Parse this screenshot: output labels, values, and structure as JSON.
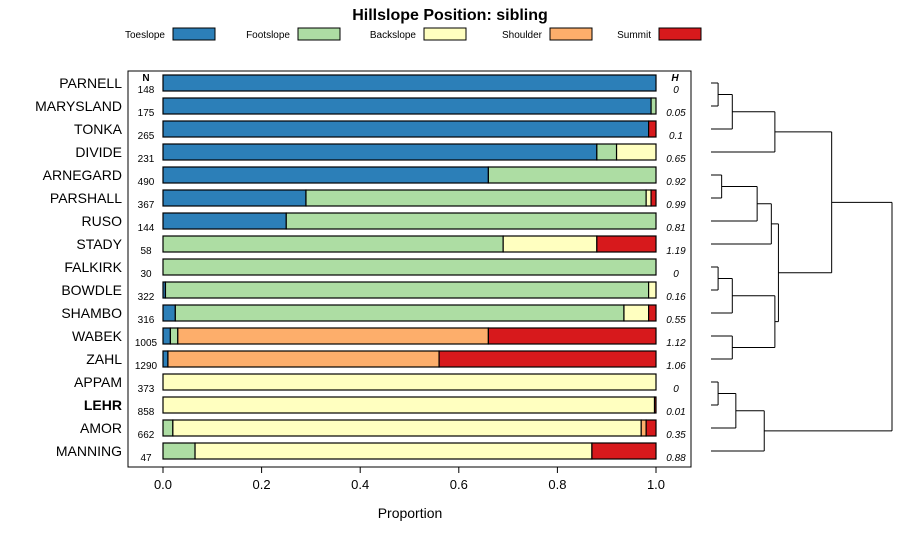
{
  "chart_data": {
    "type": "bar",
    "orientation": "horizontal",
    "stacked": true,
    "title": "Hillslope Position: sibling",
    "xlabel": "Proportion",
    "ylabel": "",
    "xlim": [
      0,
      1
    ],
    "xticks": [
      "0.0",
      "0.2",
      "0.4",
      "0.6",
      "0.8",
      "1.0"
    ],
    "legend_position": "top",
    "n_header": "N",
    "h_header": "H",
    "highlight_category": "LEHR",
    "series": [
      {
        "name": "Toeslope",
        "color": "#2c7fb8"
      },
      {
        "name": "Footslope",
        "color": "#addda3"
      },
      {
        "name": "Backslope",
        "color": "#ffffc0"
      },
      {
        "name": "Shoulder",
        "color": "#fdae6b"
      },
      {
        "name": "Summit",
        "color": "#d7191c"
      }
    ],
    "categories": [
      "PARNELL",
      "MARYSLAND",
      "TONKA",
      "DIVIDE",
      "ARNEGARD",
      "PARSHALL",
      "RUSO",
      "STADY",
      "FALKIRK",
      "BOWDLE",
      "SHAMBO",
      "WABEK",
      "ZAHL",
      "APPAM",
      "LEHR",
      "AMOR",
      "MANNING"
    ],
    "n": [
      "148",
      "175",
      "265",
      "231",
      "490",
      "367",
      "144",
      "58",
      "30",
      "322",
      "316",
      "1005",
      "1290",
      "373",
      "858",
      "662",
      "47"
    ],
    "h": [
      "0",
      "0.05",
      "0.1",
      "0.65",
      "0.92",
      "0.99",
      "0.81",
      "1.19",
      "0",
      "0.16",
      "0.55",
      "1.12",
      "1.06",
      "0",
      "0.01",
      "0.35",
      "0.88"
    ],
    "proportions": [
      [
        1.0,
        0.0,
        0.0,
        0.0,
        0.0
      ],
      [
        0.99,
        0.01,
        0.0,
        0.0,
        0.0
      ],
      [
        0.985,
        0.0,
        0.0,
        0.0,
        0.015
      ],
      [
        0.88,
        0.04,
        0.08,
        0.0,
        0.0
      ],
      [
        0.66,
        0.34,
        0.0,
        0.0,
        0.0
      ],
      [
        0.29,
        0.69,
        0.01,
        0.0,
        0.01
      ],
      [
        0.25,
        0.75,
        0.0,
        0.0,
        0.0
      ],
      [
        0.0,
        0.69,
        0.19,
        0.0,
        0.12
      ],
      [
        0.0,
        1.0,
        0.0,
        0.0,
        0.0
      ],
      [
        0.005,
        0.98,
        0.015,
        0.0,
        0.0
      ],
      [
        0.025,
        0.91,
        0.05,
        0.0,
        0.015
      ],
      [
        0.015,
        0.015,
        0.0,
        0.63,
        0.34
      ],
      [
        0.01,
        0.0,
        0.0,
        0.55,
        0.44
      ],
      [
        0.0,
        0.0,
        1.0,
        0.0,
        0.0
      ],
      [
        0.0,
        0.0,
        0.997,
        0.0,
        0.003
      ],
      [
        0.0,
        0.02,
        0.95,
        0.01,
        0.02
      ],
      [
        0.0,
        0.065,
        0.805,
        0.0,
        0.13
      ]
    ],
    "dendrogram": {
      "type": "hierarchical-clustering",
      "merges": [
        [
          -1,
          -2,
          0.02
        ],
        [
          1,
          -3,
          0.06
        ],
        [
          2,
          -4,
          0.18
        ],
        [
          -5,
          -6,
          0.03
        ],
        [
          4,
          -7,
          0.13
        ],
        [
          5,
          -8,
          0.17
        ],
        [
          -9,
          -10,
          0.02
        ],
        [
          7,
          -11,
          0.06
        ],
        [
          -12,
          -13,
          0.06
        ],
        [
          8,
          9,
          0.18
        ],
        [
          6,
          10,
          0.19
        ],
        [
          -14,
          -15,
          0.02
        ],
        [
          12,
          -16,
          0.07
        ],
        [
          13,
          -17,
          0.15
        ],
        [
          3,
          11,
          0.34
        ],
        [
          15,
          14,
          0.51
        ]
      ]
    }
  }
}
